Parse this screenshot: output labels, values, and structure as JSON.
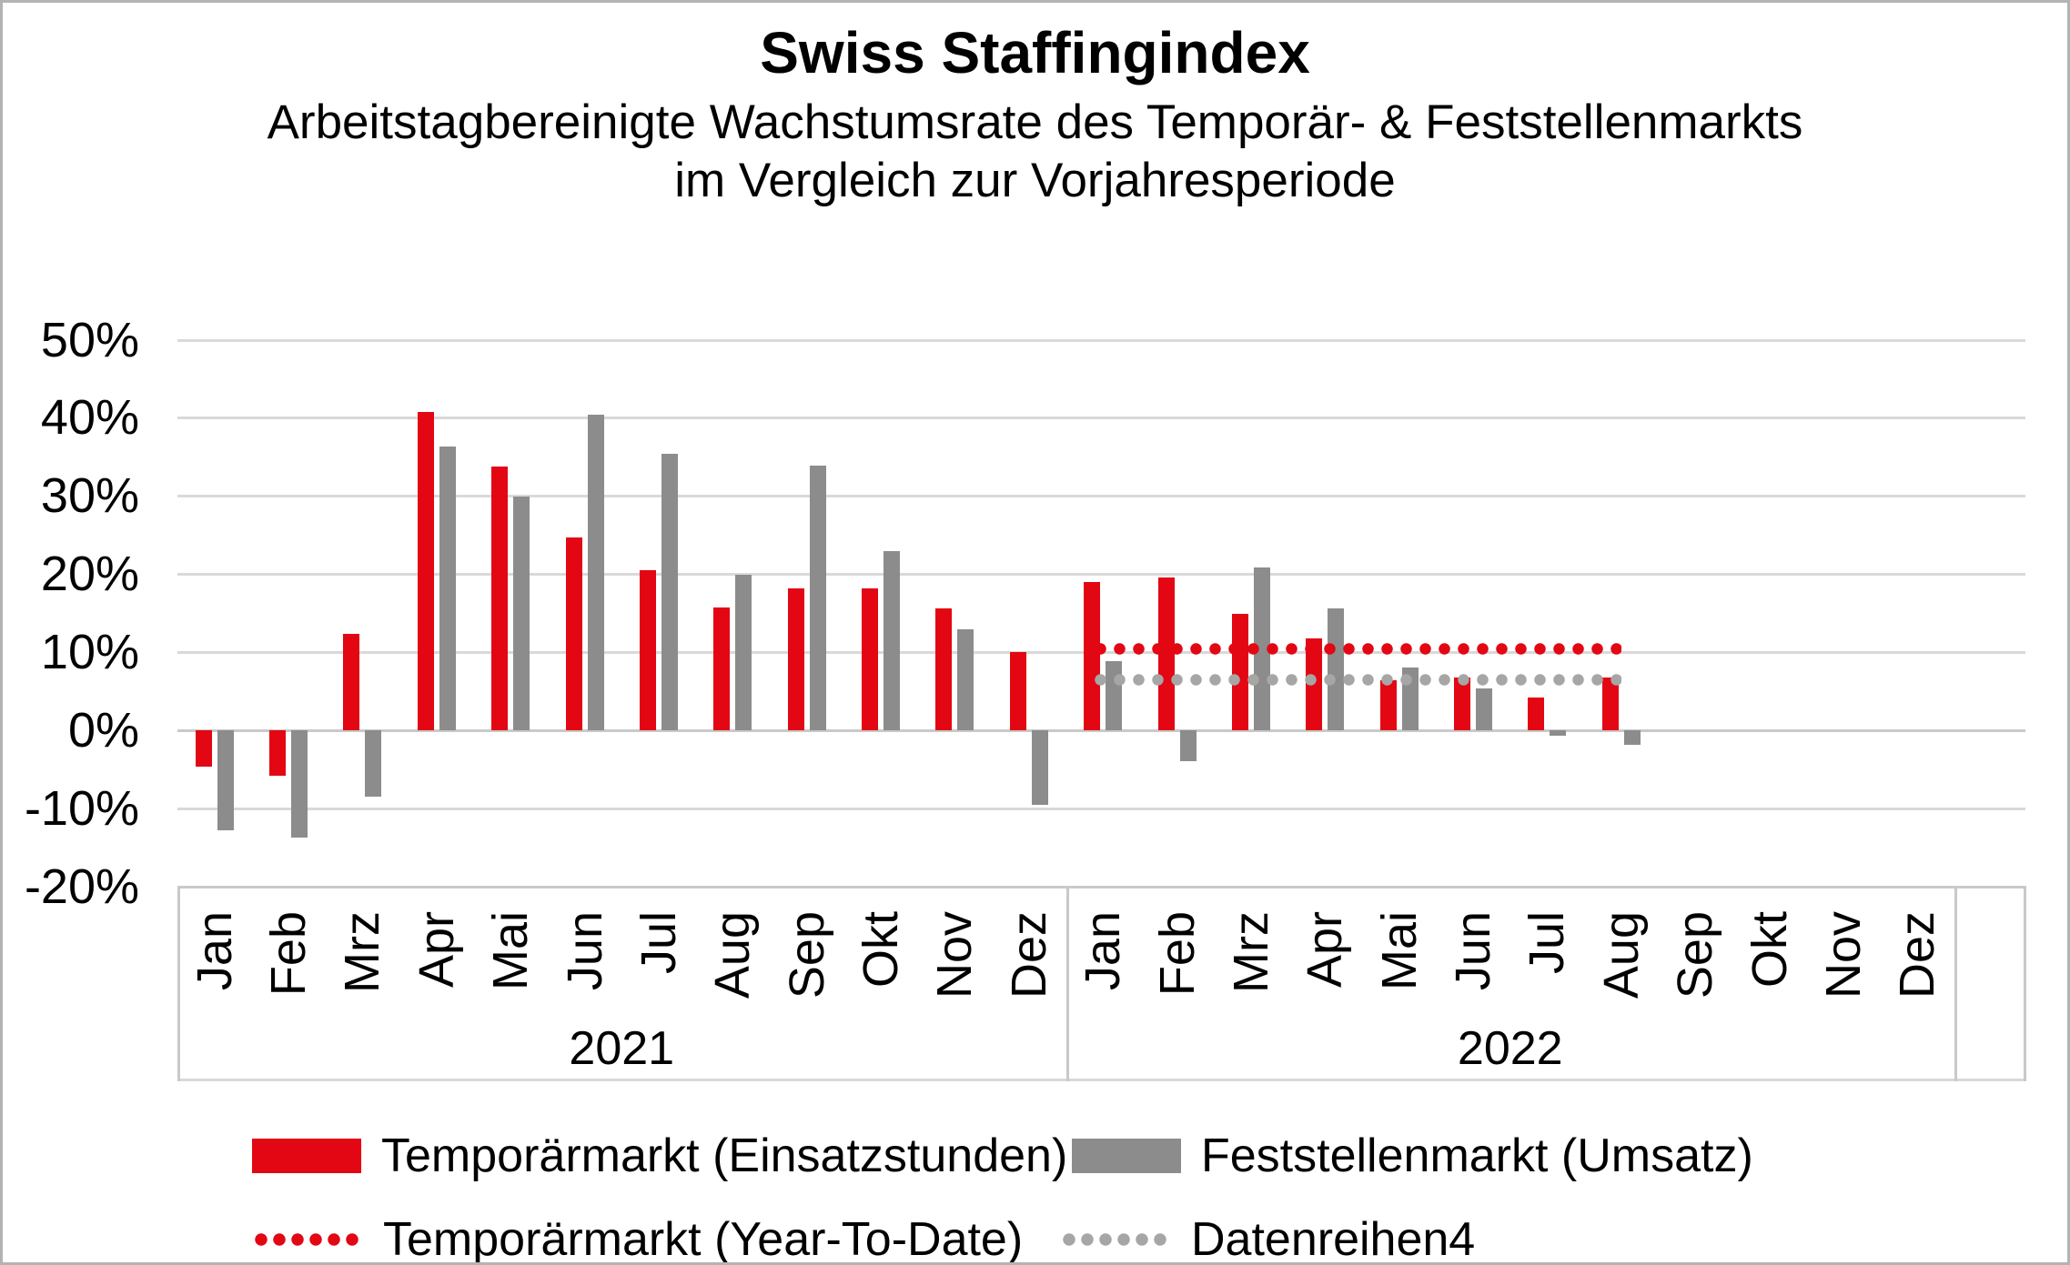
{
  "header": {
    "title": "Swiss Staffingindex",
    "subtitle_line1": "Arbeitstagbereinigte Wachstumsrate des Temporär- & Feststellenmarkts",
    "subtitle_line2": "im Vergleich zur Vorjahresperiode"
  },
  "chart_data": {
    "type": "bar",
    "title": "Swiss Staffingindex",
    "subtitle": "Arbeitstagbereinigte Wachstumsrate des Temporär- & Feststellenmarkts im Vergleich zur Vorjahresperiode",
    "unit": "percent",
    "ylim": [
      -20,
      50
    ],
    "ytick_step": 10,
    "gridline_values": [
      50,
      40,
      30,
      20,
      10,
      0,
      -10,
      -20
    ],
    "ytick_labels": [
      "50%",
      "40%",
      "30%",
      "20%",
      "10%",
      "0%",
      "-10%",
      "-20%"
    ],
    "grid": true,
    "legend_position": "bottom",
    "categories": [
      "Jan",
      "Feb",
      "Mrz",
      "Apr",
      "Mai",
      "Jun",
      "Jul",
      "Aug",
      "Sep",
      "Okt",
      "Nov",
      "Dez"
    ],
    "groups": [
      {
        "year": "2021",
        "series": [
          {
            "name": "Temporärmarkt (Einsatzstunden)",
            "color": "#e30613",
            "values": [
              -4.7,
              -5.8,
              12.3,
              40.7,
              33.8,
              24.7,
              20.5,
              15.7,
              18.2,
              18.2,
              15.6,
              10.0
            ]
          },
          {
            "name": "Feststellenmarkt (Umsatz)",
            "color": "#8c8c8c",
            "values": [
              -12.8,
              -13.7,
              -8.5,
              36.3,
              29.9,
              40.4,
              35.4,
              19.9,
              33.9,
              22.9,
              12.9,
              -9.5
            ]
          }
        ]
      },
      {
        "year": "2022",
        "series": [
          {
            "name": "Temporärmarkt (Einsatzstunden)",
            "color": "#e30613",
            "values": [
              19.0,
              19.5,
              14.9,
              11.7,
              6.4,
              6.8,
              4.2,
              6.8,
              null,
              null,
              null,
              null
            ]
          },
          {
            "name": "Feststellenmarkt (Umsatz)",
            "color": "#8c8c8c",
            "values": [
              8.8,
              -4.0,
              20.8,
              15.6,
              8.0,
              5.4,
              -0.7,
              -1.9,
              null,
              null,
              null,
              null
            ]
          }
        ]
      }
    ],
    "reference_lines": [
      {
        "name": "Temporärmarkt (Year-To-Date)",
        "style": "dotted",
        "color": "#e30613",
        "value": 10.4,
        "year": "2022",
        "from_month": "Jan",
        "to_month": "Aug"
      },
      {
        "name": "Datenreihen4",
        "style": "dotted",
        "color": "#a6a6a6",
        "value": 6.5,
        "year": "2022",
        "from_month": "Jan",
        "to_month": "Aug"
      }
    ]
  },
  "legend": {
    "items": [
      {
        "label": "Temporärmarkt (Einsatzstunden)",
        "swatch": "solid",
        "color": "#e30613"
      },
      {
        "label": "Feststellenmarkt (Umsatz)",
        "swatch": "solid",
        "color": "#8c8c8c"
      },
      {
        "label": "Temporärmarkt (Year-To-Date)",
        "swatch": "dotted",
        "color": "#e30613"
      },
      {
        "label": "Datenreihen4",
        "swatch": "dotted",
        "color": "#a6a6a6"
      }
    ]
  },
  "colors": {
    "temporaermarkt_red": "#e30613",
    "feststellenmarkt_gray": "#8c8c8c",
    "datenreihen4_gray": "#a6a6a6",
    "gridline": "#d9d9d9",
    "axis_line": "#c9c9c9",
    "page_border": "#b3b3b3"
  }
}
